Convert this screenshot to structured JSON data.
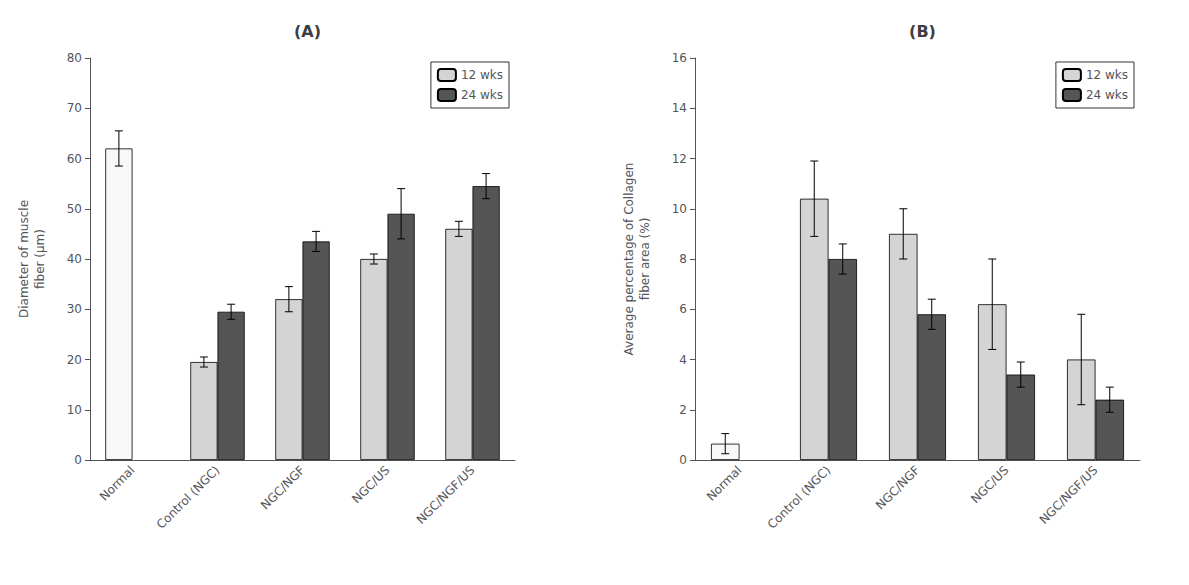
{
  "chart_data": [
    {
      "type": "bar",
      "title": "(A)",
      "ylabel": "Diameter of muscle\nfiber (μm)",
      "categories": [
        "Normal",
        "Control (NGC)",
        "NGC/NGF",
        "NGC/US",
        "NGC/NGF/US"
      ],
      "series": [
        {
          "name": "12 wks",
          "color": "#d4d4d4",
          "colors": [
            "#f8f8f8",
            "#d4d4d4",
            "#d4d4d4",
            "#d4d4d4",
            "#d4d4d4"
          ],
          "values": [
            62,
            19.5,
            32,
            40,
            46
          ],
          "errors": [
            3.5,
            1.0,
            2.5,
            1.0,
            1.5
          ]
        },
        {
          "name": "24 wks",
          "color": "#555555",
          "values": [
            null,
            29.5,
            43.5,
            49,
            54.5
          ],
          "errors": [
            null,
            1.5,
            2.0,
            5.0,
            2.5
          ]
        }
      ],
      "ylim": [
        0,
        80
      ],
      "yticks": [
        0,
        10,
        20,
        30,
        40,
        50,
        60,
        70,
        80
      ],
      "grid": false,
      "legend": "upper right"
    },
    {
      "type": "bar",
      "title": "(B)",
      "ylabel": "Average percentage of Collagen\nfiber area (%)",
      "categories": [
        "Normal",
        "Control (NGC)",
        "NGC/NGF",
        "NGC/US",
        "NGC/NGF/US"
      ],
      "series": [
        {
          "name": "12 wks",
          "color": "#d4d4d4",
          "colors": [
            "#f8f8f8",
            "#d4d4d4",
            "#d4d4d4",
            "#d4d4d4",
            "#d4d4d4"
          ],
          "values": [
            0.65,
            10.4,
            9.0,
            6.2,
            4.0
          ],
          "errors": [
            0.4,
            1.5,
            1.0,
            1.8,
            1.8
          ]
        },
        {
          "name": "24 wks",
          "color": "#555555",
          "values": [
            null,
            8.0,
            5.8,
            3.4,
            2.4
          ],
          "errors": [
            null,
            0.6,
            0.6,
            0.5,
            0.5
          ]
        }
      ],
      "ylim": [
        0,
        16
      ],
      "yticks": [
        0,
        2,
        4,
        6,
        8,
        10,
        12,
        14,
        16
      ],
      "grid": false,
      "legend": "upper right"
    }
  ]
}
